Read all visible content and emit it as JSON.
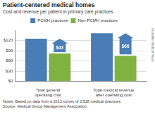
{
  "chart_data": {
    "type": "bar",
    "title": "Patient-centered medical homes",
    "subtitle": "Cost and revenue per patient in primary care practices",
    "categories": [
      "Total general operating cost",
      "Total medical revenue after operating cost"
    ],
    "series": [
      {
        "name": "PCMH practices",
        "color": "#4a7db5",
        "values": [
          125,
          141
        ]
      },
      {
        "name": "Non-PCMH practices",
        "color": "#7fb241",
        "values": [
          82,
          75
        ]
      }
    ],
    "annotations": [
      "$43",
      "$66"
    ],
    "ylim": [
      0,
      150
    ],
    "yticks": [
      {
        "value": 0,
        "label": "$0"
      },
      {
        "value": 30,
        "label": "$30"
      },
      {
        "value": 60,
        "label": "$60"
      },
      {
        "value": 90,
        "label": "$90"
      },
      {
        "value": 120,
        "label": "$120"
      }
    ],
    "grid": true,
    "legend": "top",
    "notes": "Notes: Based on data from a 2013 survey of 2,518 medical practices.",
    "source": "Source: Medical Group Management Association",
    "credit": "Frontline Medical News"
  }
}
